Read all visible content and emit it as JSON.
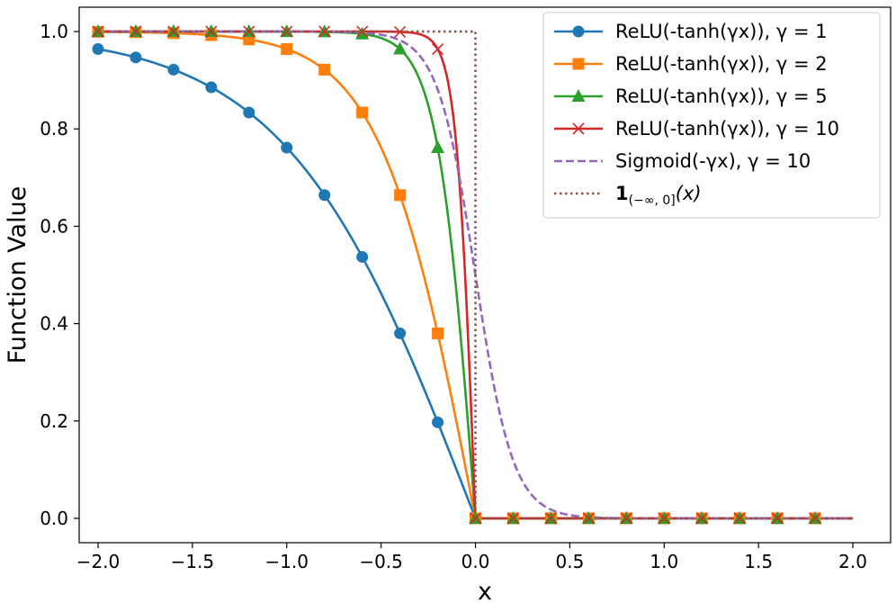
{
  "chart_data": {
    "type": "line",
    "title": "",
    "xlabel": "x",
    "ylabel": "Function Value",
    "xlim": [
      -2.1,
      2.2
    ],
    "ylim": [
      -0.05,
      1.05
    ],
    "xticks": [
      -2.0,
      -1.5,
      -1.0,
      -0.5,
      0.0,
      0.5,
      1.0,
      1.5,
      2.0
    ],
    "xtick_labels": [
      "−2.0",
      "−1.5",
      "−1.0",
      "−0.5",
      "0.0",
      "0.5",
      "1.0",
      "1.5",
      "2.0"
    ],
    "yticks": [
      0.0,
      0.2,
      0.4,
      0.6,
      0.8,
      1.0
    ],
    "ytick_labels": [
      "0.0",
      "0.2",
      "0.4",
      "0.6",
      "0.8",
      "1.0"
    ],
    "grid": false,
    "legend_position": "top-right",
    "x_range": [
      -2.0,
      2.0
    ],
    "marker_x": [
      -2.0,
      -1.8,
      -1.6,
      -1.4,
      -1.2,
      -1.0,
      -0.8,
      -0.6,
      -0.4,
      -0.2,
      0.0,
      0.2,
      0.4,
      0.6,
      0.8,
      1.0,
      1.2,
      1.4,
      1.6,
      1.8
    ],
    "series": [
      {
        "name": "ReLU(-tanh(γx)), γ = 1",
        "function": "relu_neg_tanh",
        "gamma": 1,
        "color": "#1f77b4",
        "linestyle": "solid",
        "marker": "circle"
      },
      {
        "name": "ReLU(-tanh(γx)), γ = 2",
        "function": "relu_neg_tanh",
        "gamma": 2,
        "color": "#ff7f0e",
        "linestyle": "solid",
        "marker": "square"
      },
      {
        "name": "ReLU(-tanh(γx)), γ = 5",
        "function": "relu_neg_tanh",
        "gamma": 5,
        "color": "#2ca02c",
        "linestyle": "solid",
        "marker": "triangle"
      },
      {
        "name": "ReLU(-tanh(γx)), γ = 10",
        "function": "relu_neg_tanh",
        "gamma": 10,
        "color": "#d62728",
        "linestyle": "solid",
        "marker": "x"
      },
      {
        "name": "Sigmoid(-γx), γ = 10",
        "function": "sigmoid_neg",
        "gamma": 10,
        "color": "#9467bd",
        "linestyle": "dashed",
        "marker": "none"
      },
      {
        "name_main": "1",
        "name_sub": "(−∞, 0]",
        "name_rest": "(x)",
        "function": "indicator_nonpositive",
        "color": "#8c564b",
        "linestyle": "dotted",
        "marker": "none"
      }
    ]
  }
}
